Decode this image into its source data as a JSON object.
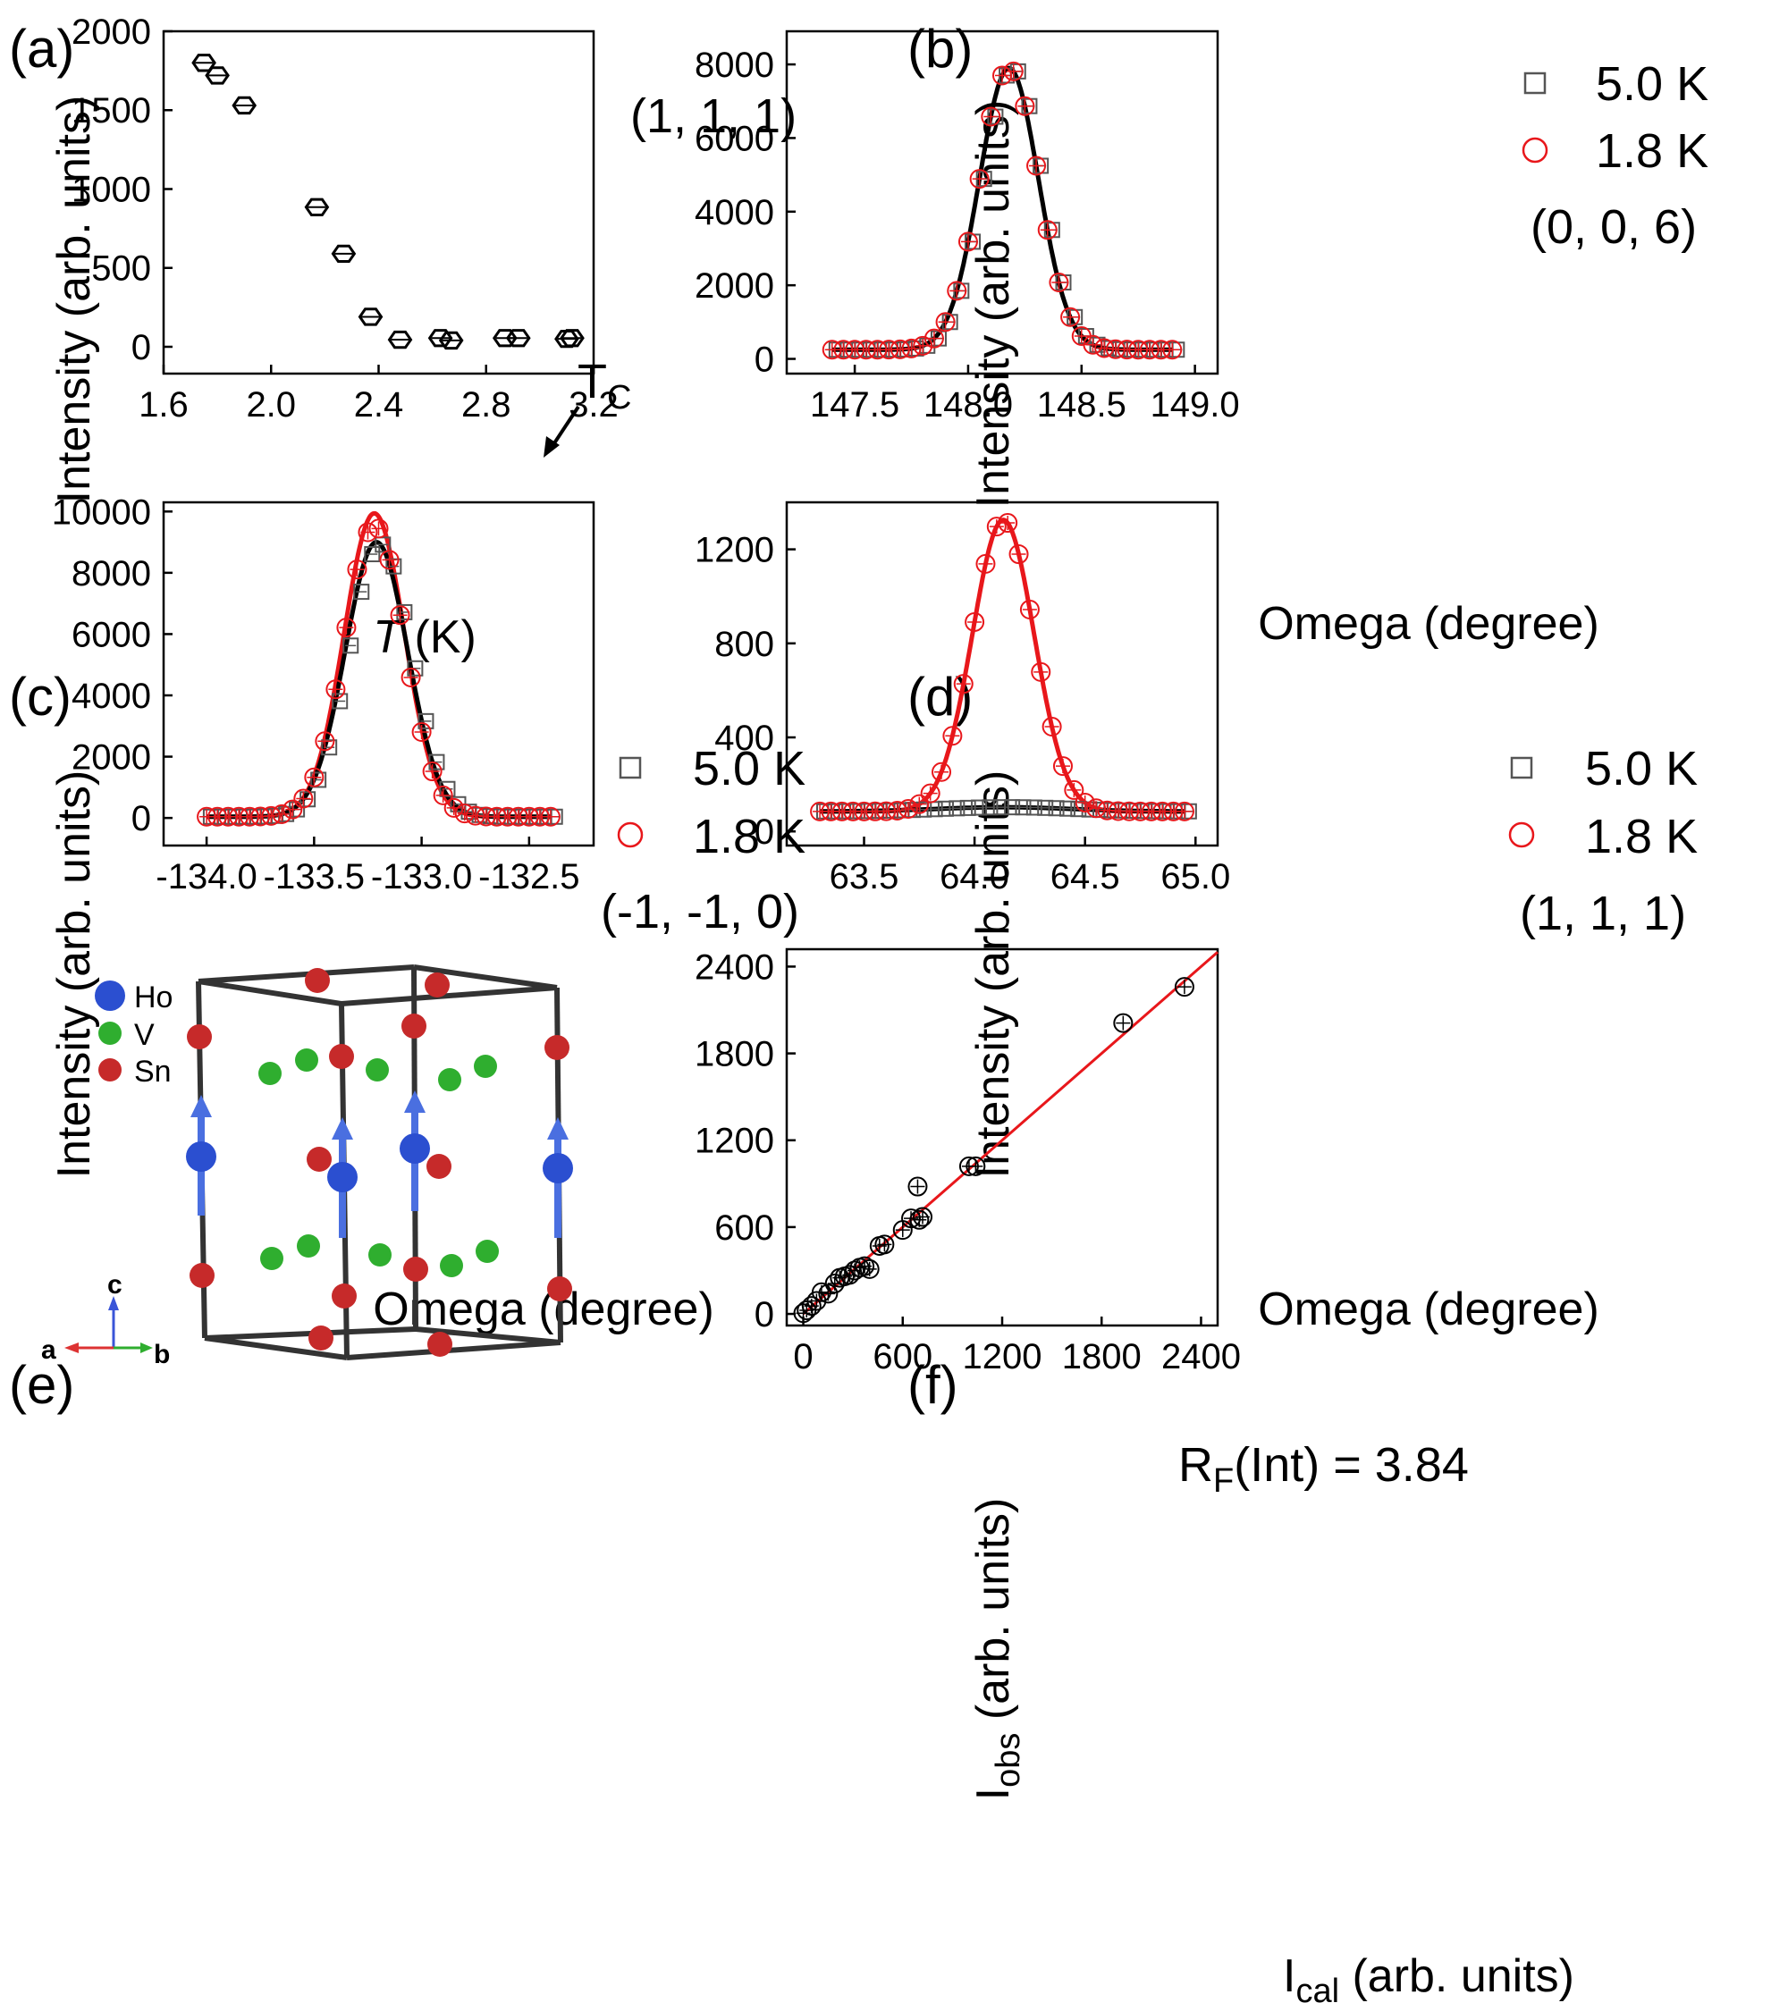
{
  "figure": {
    "colors": {
      "black": "#000000",
      "red": "#e8171b",
      "gray": "#555555",
      "ho": "#2b4fd0",
      "v": "#2fae2f",
      "sn": "#c62a2a",
      "arrow": "#4a6fe0",
      "frame": "#333333"
    }
  },
  "chart_data": [
    {
      "panel": "(a)",
      "type": "scatter",
      "xlabel_italic": "T",
      "xlabel_rest": " (K)",
      "ylabel": "Intensity (arb. units)",
      "xlim": [
        1.6,
        3.2
      ],
      "ylim": [
        -170,
        2000
      ],
      "xticks": [
        1.6,
        2.0,
        2.4,
        2.8,
        3.2
      ],
      "xticklabels": [
        "1.6",
        "2.0",
        "2.4",
        "2.8",
        "3.2"
      ],
      "yticks": [
        0,
        500,
        1000,
        1500,
        2000
      ],
      "yticklabels": [
        "0",
        "500",
        "1000",
        "1500",
        "2000"
      ],
      "annotation": "(1, 1, 1)",
      "arrow_label": "T",
      "arrow_label_sub": "C",
      "series": [
        {
          "name": "(1, 1, 1) intensity",
          "marker": "hexagon",
          "color": "#000000",
          "x": [
            1.75,
            1.8,
            1.9,
            2.17,
            2.27,
            2.37,
            2.48,
            2.63,
            2.67,
            2.87,
            2.92,
            3.1,
            3.12
          ],
          "y": [
            1800,
            1720,
            1530,
            885,
            590,
            190,
            45,
            55,
            40,
            55,
            55,
            50,
            55
          ]
        }
      ]
    },
    {
      "panel": "(b)",
      "type": "scatter",
      "xlabel": "Omega (degree)",
      "ylabel": "Intensity (arb. units)",
      "xlim": [
        147.2,
        149.1
      ],
      "ylim": [
        -400,
        8900
      ],
      "xticks": [
        147.5,
        148.0,
        148.5,
        149.0
      ],
      "xticklabels": [
        "147.5",
        "148.0",
        "148.5",
        "149.0"
      ],
      "yticks": [
        0,
        2000,
        4000,
        6000,
        8000
      ],
      "yticklabels": [
        "0",
        "2000",
        "4000",
        "6000",
        "8000"
      ],
      "legend": [
        "5.0 K",
        "1.8 K"
      ],
      "annotation": "(0, 0, 6)",
      "fit": {
        "baseline": 250,
        "amplitude": 7650,
        "center": 148.18,
        "sigma": 0.13,
        "xrange": [
          147.4,
          148.9
        ]
      },
      "series": [
        {
          "name": "5.0 K",
          "marker": "square",
          "color": "#555555",
          "center": 148.18,
          "sigma": 0.13,
          "amplitude": 7650,
          "baseline": 250,
          "xrange": [
            147.4,
            148.9
          ],
          "step": 0.05
        },
        {
          "name": "1.8 K",
          "marker": "circle",
          "color": "#e8171b",
          "center": 148.18,
          "sigma": 0.13,
          "amplitude": 7650,
          "baseline": 250,
          "xrange": [
            147.4,
            148.9
          ],
          "step": 0.05
        }
      ]
    },
    {
      "panel": "(c)",
      "type": "scatter",
      "xlabel": "Omega (degree)",
      "ylabel": "Intensity (arb. units)",
      "xlim": [
        -134.2,
        -132.2
      ],
      "ylim": [
        -900,
        10300
      ],
      "xticks": [
        -134.0,
        -133.5,
        -133.0,
        -132.5
      ],
      "xticklabels": [
        "-134.0",
        "-133.5",
        "-133.0",
        "-132.5"
      ],
      "yticks": [
        0,
        2000,
        4000,
        6000,
        8000,
        10000
      ],
      "yticklabels": [
        "0",
        "2000",
        "4000",
        "6000",
        "8000",
        "10000"
      ],
      "legend": [
        "5.0 K",
        "1.8 K"
      ],
      "annotation": "(-1, -1, 0)",
      "fits": [
        {
          "name": "5.0 K fit",
          "color": "#000000",
          "baseline": 40,
          "amplitude": 8960,
          "center": -133.21,
          "sigma": 0.145,
          "xrange": [
            -134.0,
            -132.4
          ]
        },
        {
          "name": "1.8 K fit",
          "color": "#e8171b",
          "baseline": 40,
          "amplitude": 9900,
          "center": -133.22,
          "sigma": 0.14,
          "xrange": [
            -134.0,
            -132.4
          ]
        }
      ],
      "series": [
        {
          "name": "5.0 K",
          "marker": "square",
          "color": "#555555",
          "center": -133.21,
          "sigma": 0.145,
          "amplitude": 8900,
          "baseline": 40,
          "xrange": [
            -134.0,
            -132.4
          ],
          "step": 0.05
        },
        {
          "name": "1.8 K",
          "marker": "circle",
          "color": "#e8171b",
          "center": -133.22,
          "sigma": 0.14,
          "amplitude": 9500,
          "baseline": 40,
          "xrange": [
            -134.0,
            -132.4
          ],
          "step": 0.05
        }
      ]
    },
    {
      "panel": "(d)",
      "type": "scatter",
      "xlabel": "Omega (degree)",
      "ylabel": "Intensity (arb. units)",
      "xlim": [
        63.15,
        65.1
      ],
      "ylim": [
        -60,
        1400
      ],
      "xticks": [
        63.5,
        64.0,
        64.5,
        65.0
      ],
      "xticklabels": [
        "63.5",
        "64.0",
        "64.5",
        "65.0"
      ],
      "yticks": [
        0,
        400,
        800,
        1200
      ],
      "yticklabels": [
        "0",
        "400",
        "800",
        "1200"
      ],
      "legend": [
        "5.0 K",
        "1.8 K"
      ],
      "annotation": "(1, 1, 1)",
      "fits": [
        {
          "name": "1.8 K fit",
          "color": "#e8171b",
          "baseline": 85,
          "amplitude": 1240,
          "center": 64.13,
          "sigma": 0.14,
          "xrange": [
            63.3,
            64.95
          ]
        },
        {
          "name": "5.0 K fit",
          "color": "#000000",
          "baseline": 85,
          "amplitude": 18,
          "center": 64.13,
          "sigma": 0.3,
          "xrange": [
            63.3,
            64.95
          ]
        }
      ],
      "series": [
        {
          "name": "5.0 K",
          "marker": "square",
          "color": "#555555",
          "center": 64.13,
          "sigma": 0.3,
          "amplitude": 18,
          "baseline": 85,
          "xrange": [
            63.3,
            64.95
          ],
          "step": 0.05
        },
        {
          "name": "1.8 K",
          "marker": "circle",
          "color": "#e8171b",
          "center": 64.13,
          "sigma": 0.14,
          "amplitude": 1240,
          "baseline": 85,
          "xrange": [
            63.3,
            64.95
          ],
          "step": 0.05
        }
      ]
    },
    {
      "panel": "(f)",
      "type": "scatter",
      "xlabel_main": "I",
      "xlabel_sub": "cal",
      "xlabel_rest": " (arb. units)",
      "ylabel_main": "I",
      "ylabel_sub": "obs",
      "ylabel_rest": " (arb. units)",
      "xlim": [
        -100,
        2500
      ],
      "ylim": [
        -80,
        2520
      ],
      "xticks": [
        0,
        600,
        1200,
        1800,
        2400
      ],
      "xticklabels": [
        "0",
        "600",
        "1200",
        "1800",
        "2400"
      ],
      "yticks": [
        0,
        600,
        1200,
        1800,
        2400
      ],
      "yticklabels": [
        "0",
        "600",
        "1200",
        "1800",
        "2400"
      ],
      "annotation_main": "R",
      "annotation_sub": "F",
      "annotation_rest": "(Int) = 3.84",
      "line": {
        "color": "#e8171b",
        "x": [
          0,
          2500
        ],
        "y": [
          0,
          2500
        ]
      },
      "series": [
        {
          "name": "reflections",
          "marker": "circle",
          "color": "#000000",
          "x": [
            0,
            20,
            50,
            80,
            110,
            150,
            190,
            220,
            250,
            280,
            310,
            340,
            370,
            400,
            460,
            490,
            600,
            650,
            690,
            700,
            720,
            1000,
            1040,
            1930,
            2300
          ],
          "y": [
            5,
            25,
            55,
            90,
            150,
            140,
            210,
            250,
            260,
            270,
            300,
            320,
            330,
            310,
            470,
            480,
            580,
            660,
            880,
            650,
            670,
            1020,
            1020,
            2010,
            2260
          ]
        }
      ]
    }
  ],
  "panel_e": {
    "label": "(e)",
    "legend": [
      {
        "name": "Ho",
        "color": "#2b4fd0"
      },
      {
        "name": "V",
        "color": "#2fae2f"
      },
      {
        "name": "Sn",
        "color": "#c62a2a"
      }
    ],
    "axes": {
      "a": "a",
      "b": "b",
      "c": "c"
    }
  }
}
